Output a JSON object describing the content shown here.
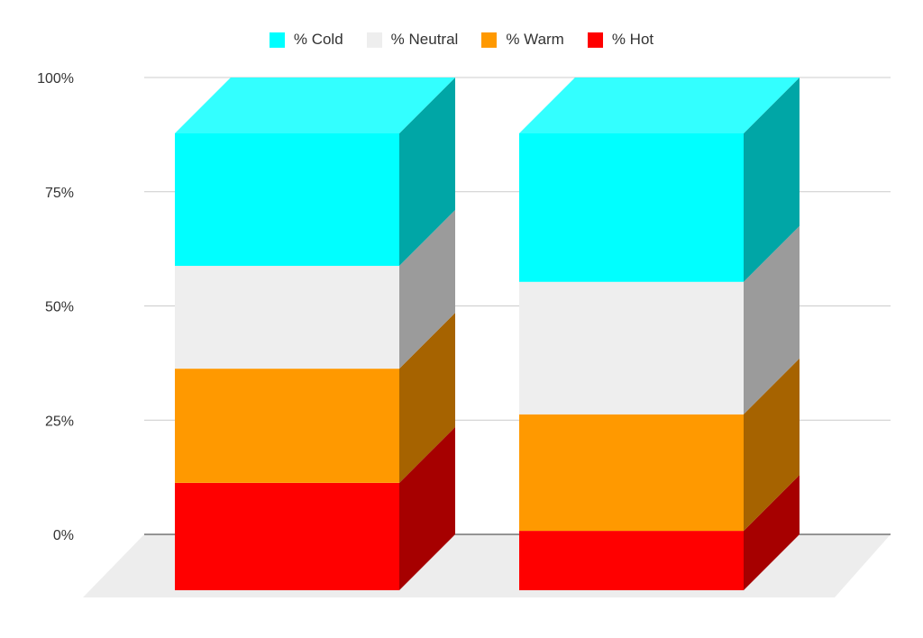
{
  "chart_data": {
    "type": "bar",
    "stacked": true,
    "three_d": true,
    "normalized_percent": true,
    "categories": [
      "",
      ""
    ],
    "series": [
      {
        "name": "% Hot",
        "color": "#ff0000",
        "side_color": "#a60000",
        "values": [
          23.5,
          13.0
        ]
      },
      {
        "name": "% Warm",
        "color": "#ff9900",
        "side_color": "#a66300",
        "values": [
          25.0,
          25.5
        ]
      },
      {
        "name": "% Neutral",
        "color": "#eeeeee",
        "side_color": "#9b9b9b",
        "values": [
          22.5,
          29.0
        ]
      },
      {
        "name": "% Cold",
        "color": "#00ffff",
        "side_color": "#00a6a6",
        "top_color": "#33ffff",
        "values": [
          29.0,
          32.5
        ]
      }
    ],
    "y_ticks": [
      "0%",
      "25%",
      "50%",
      "75%",
      "100%"
    ],
    "ylim": [
      0,
      100
    ],
    "grid": true,
    "legend_position": "top",
    "title": "",
    "xlabel": "",
    "ylabel": ""
  }
}
